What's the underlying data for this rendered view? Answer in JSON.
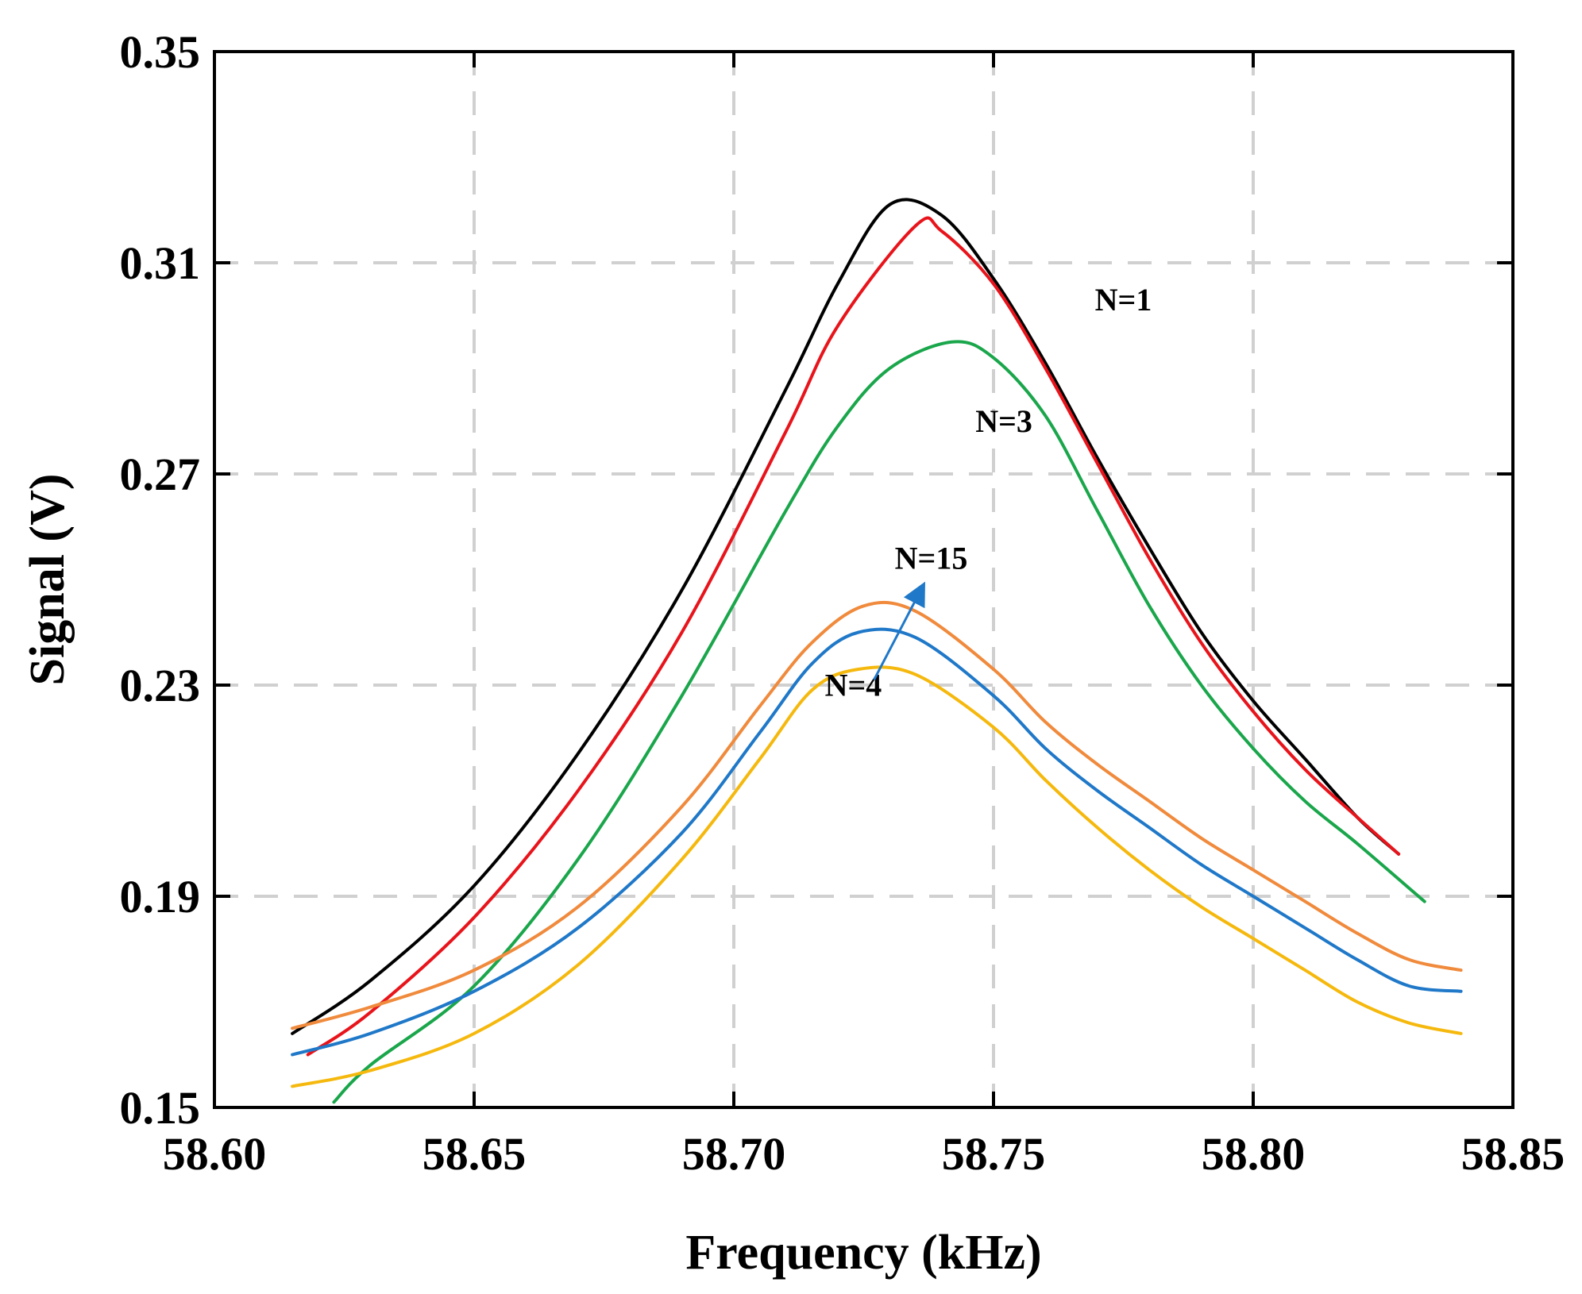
{
  "chart_data": {
    "type": "line",
    "title": "",
    "xlabel": "Frequency (kHz)",
    "ylabel": "Signal (V)",
    "xlim": [
      58.6,
      58.85
    ],
    "ylim": [
      0.15,
      0.35
    ],
    "xticks": [
      "58.60",
      "58.65",
      "58.70",
      "58.75",
      "58.80",
      "58.85"
    ],
    "xtick_values": [
      58.6,
      58.65,
      58.7,
      58.75,
      58.8,
      58.85
    ],
    "yticks": [
      "0.15",
      "0.19",
      "0.23",
      "0.27",
      "0.31",
      "0.35"
    ],
    "ytick_values": [
      0.15,
      0.19,
      0.23,
      0.27,
      0.31,
      0.35
    ],
    "grid": true,
    "series": [
      {
        "name": "black",
        "color": "#000000",
        "x": [
          58.615,
          58.63,
          58.65,
          58.67,
          58.69,
          58.71,
          58.72,
          58.73,
          58.74,
          58.75,
          58.76,
          58.77,
          58.78,
          58.79,
          58.8,
          58.81,
          58.82,
          58.828
        ],
        "y": [
          0.164,
          0.174,
          0.192,
          0.217,
          0.248,
          0.286,
          0.306,
          0.321,
          0.319,
          0.307,
          0.291,
          0.273,
          0.256,
          0.24,
          0.227,
          0.216,
          0.205,
          0.198
        ]
      },
      {
        "name": "red",
        "color": "#e8141b",
        "x": [
          58.618,
          58.63,
          58.65,
          58.67,
          58.69,
          58.71,
          58.72,
          58.735,
          58.74,
          58.75,
          58.76,
          58.77,
          58.78,
          58.79,
          58.8,
          58.81,
          58.82,
          58.828
        ],
        "y": [
          0.16,
          0.168,
          0.186,
          0.21,
          0.24,
          0.278,
          0.298,
          0.317,
          0.316,
          0.306,
          0.29,
          0.272,
          0.254,
          0.238,
          0.225,
          0.214,
          0.205,
          0.198
        ]
      },
      {
        "name": "green",
        "color": "#1aa64b",
        "x": [
          58.623,
          58.63,
          58.65,
          58.67,
          58.69,
          58.71,
          58.72,
          58.73,
          58.742,
          58.75,
          58.76,
          58.77,
          58.78,
          58.79,
          58.8,
          58.81,
          58.82,
          58.833
        ],
        "y": [
          0.151,
          0.158,
          0.173,
          0.197,
          0.228,
          0.263,
          0.279,
          0.29,
          0.295,
          0.292,
          0.281,
          0.263,
          0.245,
          0.23,
          0.218,
          0.208,
          0.2,
          0.189
        ]
      },
      {
        "name": "orange",
        "color": "#f08a3c",
        "x": [
          58.615,
          58.63,
          58.65,
          58.67,
          58.69,
          58.705,
          58.715,
          58.725,
          58.735,
          58.75,
          58.76,
          58.77,
          58.78,
          58.79,
          58.8,
          58.81,
          58.82,
          58.83,
          58.84
        ],
        "y": [
          0.165,
          0.169,
          0.176,
          0.188,
          0.207,
          0.226,
          0.238,
          0.245,
          0.244,
          0.233,
          0.223,
          0.215,
          0.208,
          0.201,
          0.195,
          0.189,
          0.183,
          0.178,
          0.176
        ]
      },
      {
        "name": "blue",
        "color": "#1f78c8",
        "x": [
          58.615,
          58.63,
          58.65,
          58.67,
          58.69,
          58.705,
          58.715,
          58.724,
          58.735,
          58.75,
          58.76,
          58.77,
          58.78,
          58.79,
          58.8,
          58.81,
          58.82,
          58.83,
          58.84
        ],
        "y": [
          0.16,
          0.164,
          0.172,
          0.184,
          0.202,
          0.221,
          0.234,
          0.24,
          0.239,
          0.228,
          0.218,
          0.21,
          0.203,
          0.196,
          0.19,
          0.184,
          0.178,
          0.173,
          0.172
        ]
      },
      {
        "name": "yellow",
        "color": "#f5b80d",
        "x": [
          58.615,
          58.63,
          58.65,
          58.67,
          58.69,
          58.705,
          58.715,
          58.724,
          58.735,
          58.75,
          58.76,
          58.77,
          58.78,
          58.79,
          58.8,
          58.81,
          58.82,
          58.83,
          58.84
        ],
        "y": [
          0.154,
          0.157,
          0.164,
          0.177,
          0.197,
          0.216,
          0.229,
          0.233,
          0.232,
          0.222,
          0.212,
          0.203,
          0.195,
          0.188,
          0.182,
          0.176,
          0.17,
          0.166,
          0.164
        ]
      }
    ],
    "annotations": [
      {
        "text": "N=1",
        "x": 58.775,
        "y": 0.301
      },
      {
        "text": "N=3",
        "x": 58.752,
        "y": 0.278
      },
      {
        "text": "N=15",
        "x": 58.738,
        "y": 0.252
      },
      {
        "text": "N=4",
        "x": 58.723,
        "y": 0.228
      }
    ],
    "arrow": {
      "from": [
        58.727,
        0.231
      ],
      "to": [
        58.736,
        0.248
      ],
      "color": "#1f78c8"
    }
  }
}
